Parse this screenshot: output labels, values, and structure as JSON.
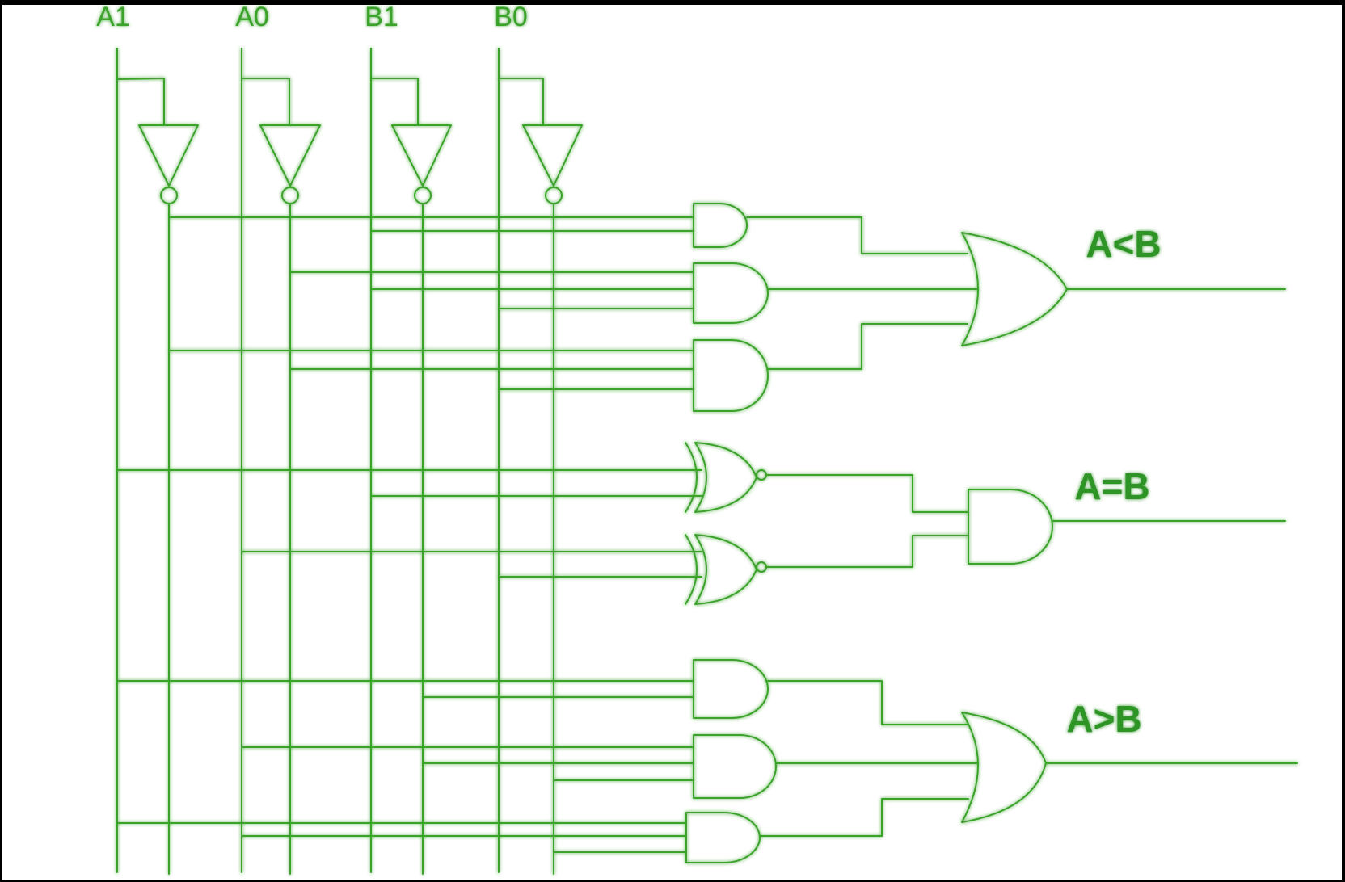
{
  "diagram": {
    "title": "",
    "colors": {
      "wire": "#3aa22c",
      "background": "#ffffff",
      "frame": "#000000"
    },
    "inputs": [
      "A1",
      "A0",
      "B1",
      "B0"
    ],
    "outputs": [
      "A<B",
      "A=B",
      "A>B"
    ],
    "gates": [
      {
        "name": "not-a1",
        "type": "NOT",
        "in": [
          "A1"
        ]
      },
      {
        "name": "not-a0",
        "type": "NOT",
        "in": [
          "A0"
        ]
      },
      {
        "name": "not-b1",
        "type": "NOT",
        "in": [
          "B1"
        ]
      },
      {
        "name": "not-b0",
        "type": "NOT",
        "in": [
          "B0"
        ]
      },
      {
        "name": "and-lt-1",
        "type": "AND",
        "in": [
          "A1'",
          "B1"
        ]
      },
      {
        "name": "and-lt-2",
        "type": "AND",
        "in": [
          "A0'",
          "B1",
          "B0"
        ]
      },
      {
        "name": "and-lt-3",
        "type": "AND",
        "in": [
          "A1'",
          "A0'",
          "B0"
        ]
      },
      {
        "name": "or-lt",
        "type": "OR",
        "out": "A<B"
      },
      {
        "name": "xnor-1",
        "type": "XNOR",
        "in": [
          "A1",
          "B1"
        ]
      },
      {
        "name": "xnor-0",
        "type": "XNOR",
        "in": [
          "A0",
          "B0"
        ]
      },
      {
        "name": "and-eq",
        "type": "AND",
        "out": "A=B"
      },
      {
        "name": "and-gt-1",
        "type": "AND",
        "in": [
          "A1",
          "B1'"
        ]
      },
      {
        "name": "and-gt-2",
        "type": "AND",
        "in": [
          "A0",
          "B1'",
          "B0'"
        ]
      },
      {
        "name": "and-gt-3",
        "type": "AND",
        "in": [
          "A1",
          "A0",
          "B0'"
        ]
      },
      {
        "name": "or-gt",
        "type": "OR",
        "out": "A>B"
      }
    ]
  }
}
